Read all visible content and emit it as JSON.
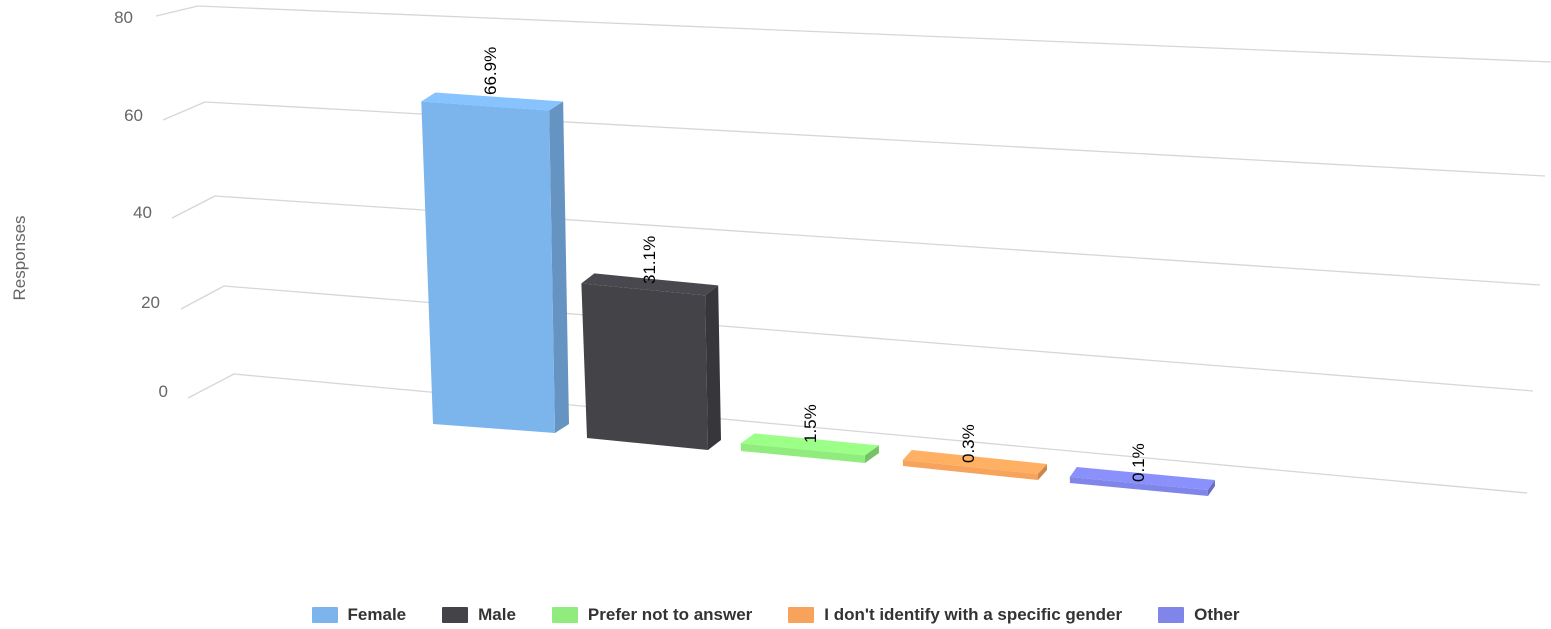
{
  "chart_data": {
    "type": "bar",
    "style": "3d",
    "ylabel": "Responses",
    "ylim": [
      0,
      80
    ],
    "yticks": [
      0,
      20,
      40,
      60,
      80
    ],
    "grid": true,
    "legend_position": "bottom",
    "categories": [
      "Female",
      "Male",
      "Prefer not to answer",
      "I don't identify with a specific gender",
      "Other"
    ],
    "values": [
      66.9,
      31.1,
      1.5,
      0.3,
      0.1
    ],
    "data_labels": [
      "66.9%",
      "31.1%",
      "1.5%",
      "0.3%",
      "0.1%"
    ],
    "colors": [
      "#7cb5ec",
      "#434348",
      "#90ed7d",
      "#f7a35c",
      "#8085e9"
    ]
  }
}
